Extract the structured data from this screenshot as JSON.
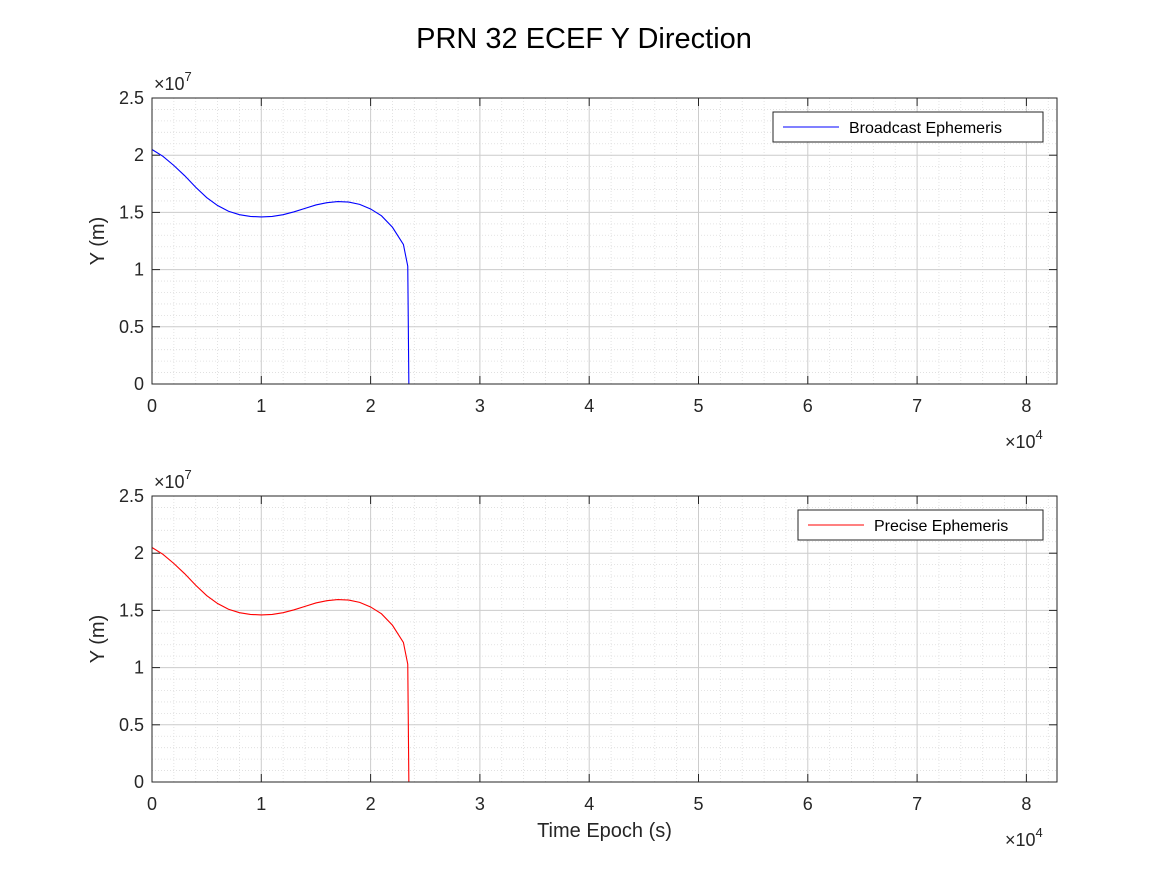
{
  "title": "PRN 32 ECEF Y Direction",
  "chart_data": [
    {
      "type": "line",
      "title": "",
      "xlabel": "",
      "ylabel": "Y (m)",
      "xlim": [
        0,
        82800
      ],
      "ylim": [
        0,
        25000000
      ],
      "xticks": [
        0,
        10000,
        20000,
        30000,
        40000,
        50000,
        60000,
        70000,
        80000
      ],
      "xtick_labels": [
        "0",
        "1",
        "2",
        "3",
        "4",
        "5",
        "6",
        "7",
        "8"
      ],
      "yticks": [
        0,
        5000000,
        10000000,
        15000000,
        20000000,
        25000000
      ],
      "ytick_labels": [
        "0",
        "0.5",
        "1",
        "1.5",
        "2",
        "2.5"
      ],
      "x_exponent": {
        "base": "×10",
        "power": "4"
      },
      "y_exponent": {
        "base": "×10",
        "power": "7"
      },
      "grid": true,
      "minor_grid": true,
      "legend_position": "top-right",
      "series": [
        {
          "name": "Broadcast Ephemeris",
          "color": "#0000ff",
          "x": [
            0,
            1000,
            2000,
            3000,
            4000,
            5000,
            6000,
            7000,
            8000,
            9000,
            10000,
            11000,
            12000,
            13000,
            14000,
            15000,
            16000,
            17000,
            18000,
            19000,
            20000,
            21000,
            22000,
            23000,
            23400,
            23500,
            24000,
            30000,
            40000,
            50000,
            60000,
            70000,
            80000,
            82800
          ],
          "y": [
            20500000,
            19900000,
            19100000,
            18200000,
            17200000,
            16300000,
            15600000,
            15100000,
            14800000,
            14650000,
            14600000,
            14650000,
            14800000,
            15050000,
            15350000,
            15650000,
            15850000,
            15950000,
            15900000,
            15700000,
            15300000,
            14700000,
            13700000,
            12200000,
            10300000,
            0,
            0,
            0,
            0,
            0,
            0,
            0,
            0,
            0
          ]
        }
      ]
    },
    {
      "type": "line",
      "title": "",
      "xlabel": "Time Epoch (s)",
      "ylabel": "Y (m)",
      "xlim": [
        0,
        82800
      ],
      "ylim": [
        0,
        25000000
      ],
      "xticks": [
        0,
        10000,
        20000,
        30000,
        40000,
        50000,
        60000,
        70000,
        80000
      ],
      "xtick_labels": [
        "0",
        "1",
        "2",
        "3",
        "4",
        "5",
        "6",
        "7",
        "8"
      ],
      "yticks": [
        0,
        5000000,
        10000000,
        15000000,
        20000000,
        25000000
      ],
      "ytick_labels": [
        "0",
        "0.5",
        "1",
        "1.5",
        "2",
        "2.5"
      ],
      "x_exponent": {
        "base": "×10",
        "power": "4"
      },
      "y_exponent": {
        "base": "×10",
        "power": "7"
      },
      "grid": true,
      "minor_grid": true,
      "legend_position": "top-right",
      "series": [
        {
          "name": "Precise Ephemeris",
          "color": "#ff0000",
          "x": [
            0,
            1000,
            2000,
            3000,
            4000,
            5000,
            6000,
            7000,
            8000,
            9000,
            10000,
            11000,
            12000,
            13000,
            14000,
            15000,
            16000,
            17000,
            18000,
            19000,
            20000,
            21000,
            22000,
            23000,
            23400,
            23500,
            24000,
            30000,
            40000,
            50000,
            60000,
            70000,
            80000,
            82800
          ],
          "y": [
            20500000,
            19900000,
            19100000,
            18200000,
            17200000,
            16300000,
            15600000,
            15100000,
            14800000,
            14650000,
            14600000,
            14650000,
            14800000,
            15050000,
            15350000,
            15650000,
            15850000,
            15950000,
            15900000,
            15700000,
            15300000,
            14700000,
            13700000,
            12200000,
            10300000,
            0,
            0,
            0,
            0,
            0,
            0,
            0,
            0,
            0
          ]
        }
      ]
    }
  ]
}
